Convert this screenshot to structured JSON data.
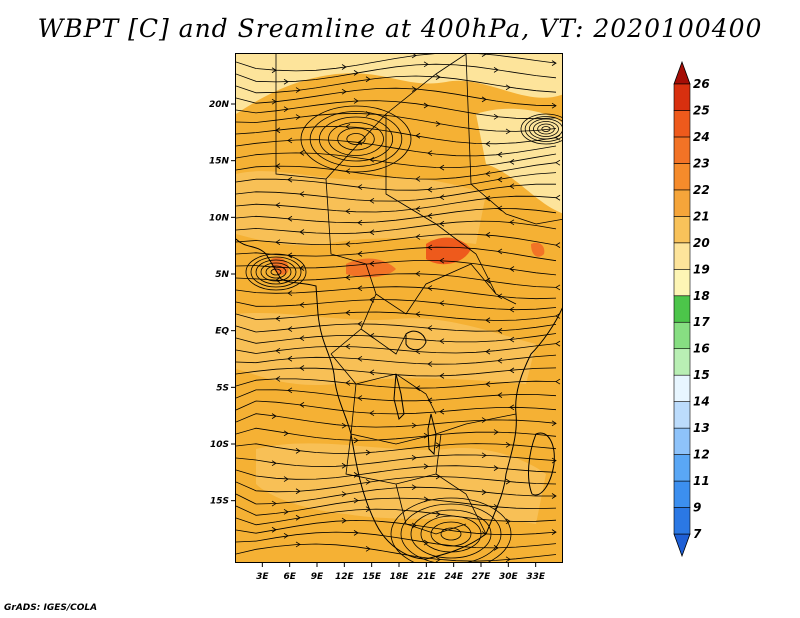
{
  "title": "WBPT [C] and Sreamline at 400hPa, VT: 2020100400",
  "footer": "GrADS: IGES/COLA",
  "map": {
    "lon_range": [
      0,
      36
    ],
    "lat_range": [
      -20.5,
      24.5
    ],
    "x_ticks": [
      {
        "value": 3,
        "label": "3E"
      },
      {
        "value": 6,
        "label": "6E"
      },
      {
        "value": 9,
        "label": "9E"
      },
      {
        "value": 12,
        "label": "12E"
      },
      {
        "value": 15,
        "label": "15E"
      },
      {
        "value": 18,
        "label": "18E"
      },
      {
        "value": 21,
        "label": "21E"
      },
      {
        "value": 24,
        "label": "24E"
      },
      {
        "value": 27,
        "label": "27E"
      },
      {
        "value": 30,
        "label": "30E"
      },
      {
        "value": 33,
        "label": "33E"
      }
    ],
    "y_ticks": [
      {
        "value": 20,
        "label": "20N"
      },
      {
        "value": 15,
        "label": "15N"
      },
      {
        "value": 10,
        "label": "10N"
      },
      {
        "value": 5,
        "label": "5N"
      },
      {
        "value": 0,
        "label": "EQ"
      },
      {
        "value": -5,
        "label": "5S"
      },
      {
        "value": -10,
        "label": "10S"
      },
      {
        "value": -15,
        "label": "15S"
      }
    ],
    "background_color": "#f5b134",
    "colors": {
      "wbpt_19_20": "#fde49b",
      "wbpt_20_21": "#f8c25a",
      "wbpt_21_22": "#f5a53a",
      "wbpt_22_23": "#f27326",
      "wbpt_23_24": "#ee5a1c"
    }
  },
  "colorbar": {
    "levels": [
      "7",
      "9",
      "11",
      "12",
      "13",
      "14",
      "15",
      "16",
      "17",
      "18",
      "19",
      "20",
      "21",
      "22",
      "23",
      "24",
      "25",
      "26"
    ],
    "colors": [
      "#1e5fd6",
      "#2b78e4",
      "#3c8fef",
      "#5aa7f5",
      "#8ec3fa",
      "#bcdcfc",
      "#e8f6ff",
      "#b9efb4",
      "#87de82",
      "#4cc54a",
      "#fdf5b5",
      "#fde49b",
      "#f8c25a",
      "#f5a53a",
      "#f58b2b",
      "#f27326",
      "#ee5a1c",
      "#d8300f",
      "#a50e06"
    ]
  }
}
